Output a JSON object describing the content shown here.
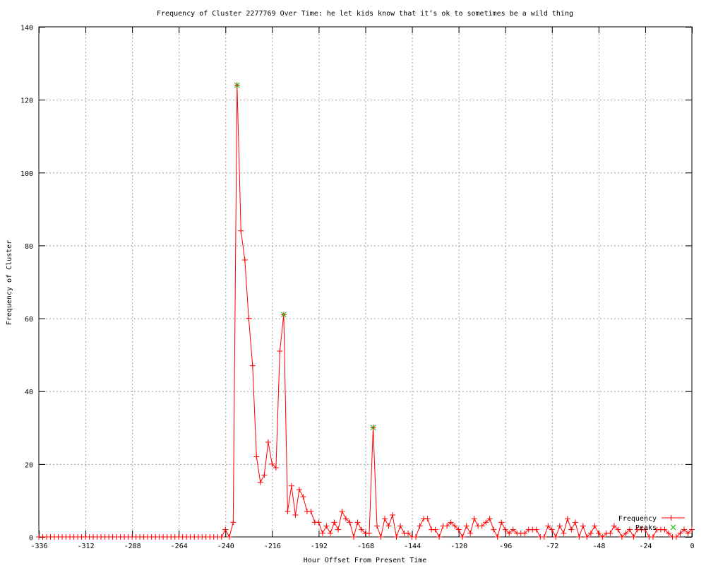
{
  "chart_data": {
    "type": "line",
    "title": "Frequency of Cluster 2277769 Over Time: he let kids know that it’s ok to sometimes be a wild thing",
    "xlabel": "Hour Offset From Present Time",
    "ylabel": "Frequency of Cluster",
    "xlim": [
      -336,
      0
    ],
    "ylim": [
      0,
      140
    ],
    "xticks": [
      -336,
      -312,
      -288,
      -264,
      -240,
      -216,
      -192,
      -168,
      -144,
      -120,
      -96,
      -72,
      -48,
      -24,
      0
    ],
    "yticks": [
      0,
      20,
      40,
      60,
      80,
      100,
      120,
      140
    ],
    "grid": true,
    "legend_position": "bottom-right",
    "series": [
      {
        "name": "Frequency",
        "color": "#ff0000",
        "marker": "plus",
        "x": [
          -336,
          -334,
          -332,
          -330,
          -328,
          -326,
          -324,
          -322,
          -320,
          -318,
          -316,
          -314,
          -312,
          -310,
          -308,
          -306,
          -304,
          -302,
          -300,
          -298,
          -296,
          -294,
          -292,
          -290,
          -288,
          -286,
          -284,
          -282,
          -280,
          -278,
          -276,
          -274,
          -272,
          -270,
          -268,
          -266,
          -264,
          -262,
          -260,
          -258,
          -256,
          -254,
          -252,
          -250,
          -248,
          -246,
          -244,
          -242,
          -240,
          -238,
          -236,
          -234,
          -232,
          -230,
          -228,
          -226,
          -224,
          -222,
          -220,
          -218,
          -216,
          -214,
          -212,
          -210,
          -208,
          -206,
          -204,
          -202,
          -200,
          -198,
          -196,
          -194,
          -192,
          -190,
          -188,
          -186,
          -184,
          -182,
          -180,
          -178,
          -176,
          -174,
          -172,
          -170,
          -168,
          -166,
          -164,
          -162,
          -160,
          -158,
          -156,
          -154,
          -152,
          -150,
          -148,
          -146,
          -144,
          -142,
          -140,
          -138,
          -136,
          -134,
          -132,
          -130,
          -128,
          -126,
          -124,
          -122,
          -120,
          -118,
          -116,
          -114,
          -112,
          -110,
          -108,
          -106,
          -104,
          -102,
          -100,
          -98,
          -96,
          -94,
          -92,
          -90,
          -88,
          -86,
          -84,
          -82,
          -80,
          -78,
          -76,
          -74,
          -72,
          -70,
          -68,
          -66,
          -64,
          -62,
          -60,
          -58,
          -56,
          -54,
          -52,
          -50,
          -48,
          -46,
          -44,
          -42,
          -40,
          -38,
          -36,
          -34,
          -32,
          -30,
          -28,
          -26,
          -24,
          -22,
          -20,
          -18,
          -16,
          -14,
          -12,
          -10,
          -8,
          -6,
          -4,
          -2,
          0
        ],
        "y": [
          0,
          0,
          0,
          0,
          0,
          0,
          0,
          0,
          0,
          0,
          0,
          0,
          0,
          0,
          0,
          0,
          0,
          0,
          0,
          0,
          0,
          0,
          0,
          0,
          0,
          0,
          0,
          0,
          0,
          0,
          0,
          0,
          0,
          0,
          0,
          0,
          0,
          0,
          0,
          0,
          0,
          0,
          0,
          0,
          0,
          0,
          0,
          0,
          2,
          0,
          4,
          124,
          84,
          76,
          60,
          47,
          22,
          15,
          17,
          26,
          20,
          19,
          51,
          61,
          7,
          14,
          6,
          13,
          11,
          7,
          7,
          4,
          4,
          1,
          3,
          1,
          4,
          2,
          7,
          5,
          4,
          0,
          4,
          2,
          1,
          1,
          30,
          3,
          0,
          5,
          3,
          6,
          0,
          3,
          1,
          1,
          0,
          0,
          3,
          5,
          5,
          2,
          2,
          0,
          3,
          3,
          4,
          3,
          2,
          0,
          3,
          1,
          5,
          3,
          3,
          4,
          5,
          2,
          0,
          4,
          2,
          1,
          2,
          1,
          1,
          1,
          2,
          2,
          2,
          0,
          0,
          3,
          2,
          0,
          3,
          1,
          5,
          2,
          4,
          0,
          3,
          0,
          1,
          3,
          1,
          0,
          1,
          1,
          3,
          2,
          0,
          1,
          2,
          0,
          2,
          2,
          2,
          0,
          0,
          2,
          2,
          2,
          1,
          0,
          0,
          1,
          2,
          1,
          2
        ]
      },
      {
        "name": "Peaks",
        "color": "#00c000",
        "marker": "cross",
        "x": [
          -234,
          -210,
          -164
        ],
        "y": [
          124,
          61,
          30
        ]
      }
    ]
  }
}
